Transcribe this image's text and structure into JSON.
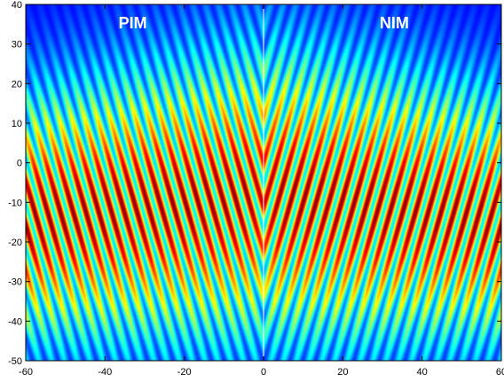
{
  "chart_data": {
    "type": "heatmap",
    "title": "",
    "xlabel": "",
    "ylabel": "",
    "xlim": [
      -60,
      60
    ],
    "ylim": [
      -50,
      40
    ],
    "x_ticks": [
      -60,
      -40,
      -20,
      0,
      20,
      40,
      60
    ],
    "y_ticks": [
      -50,
      -40,
      -30,
      -20,
      -10,
      0,
      10,
      20,
      30,
      40
    ],
    "colormap": "jet",
    "interface_x": 0,
    "interface_color": "#ffffff",
    "regions": [
      {
        "label": "PIM",
        "x_range": [
          -60,
          0
        ]
      },
      {
        "label": "NIM",
        "x_range": [
          0,
          60
        ]
      }
    ],
    "beam_profile": {
      "center_y": [
        {
          "x": -60,
          "y": -14
        },
        {
          "x": 0,
          "y": -8
        },
        {
          "x": 60,
          "y": -14
        }
      ],
      "fringe_slope_dy_dx": {
        "PIM": -3.5,
        "NIM": 3.5
      },
      "peak_intensity_region_y": [
        -20,
        0
      ]
    }
  }
}
